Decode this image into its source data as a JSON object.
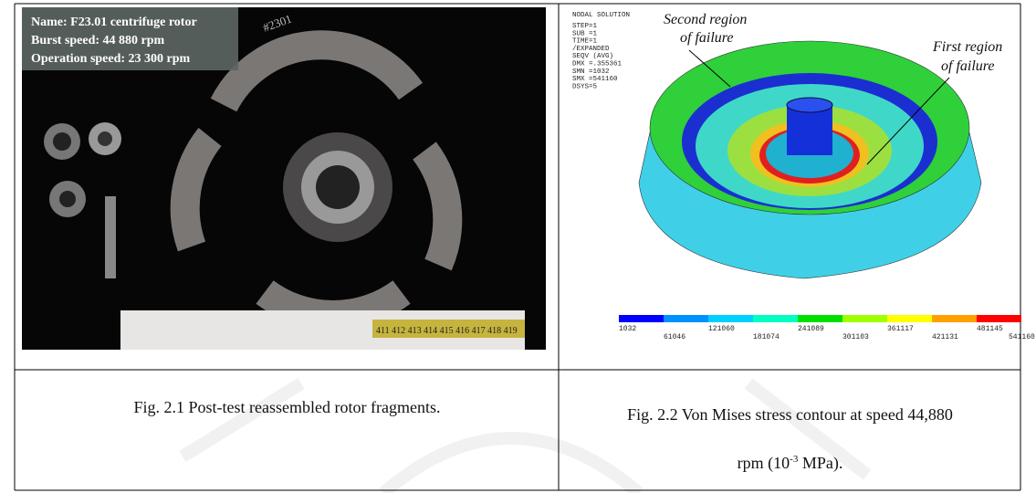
{
  "left_figure": {
    "overlay": [
      "Name: F23.01 centrifuge rotor",
      "Burst speed: 44 880 rpm",
      "Operation speed: 23 300 rpm"
    ],
    "fragment_label": "#2301",
    "ruler": "411 412 413 414 415 416 417 418 419"
  },
  "right_figure": {
    "header": [
      "NODAL SOLUTION",
      "STEP=1",
      "SUB =1",
      "TIME=1",
      "/EXPANDED",
      "SEQV      (AVG)",
      "DMX =.355361",
      "SMN =1032",
      "SMX =541160",
      "DSYS=5"
    ],
    "annotations": [
      [
        "Second region",
        "of failure"
      ],
      [
        "First region",
        "of failure"
      ]
    ],
    "legend": [
      "1032",
      "61046",
      "121060",
      "181074",
      "241089",
      "301103",
      "361117",
      "421131",
      "481145",
      "541160"
    ]
  },
  "captions": {
    "left": "Fig. 2.1 Post-test reassembled rotor fragments.",
    "right": [
      "Fig. 2.2 Von Mises stress contour at speed 44,880",
      "rpm (10",
      "-3",
      " MPa)."
    ]
  }
}
